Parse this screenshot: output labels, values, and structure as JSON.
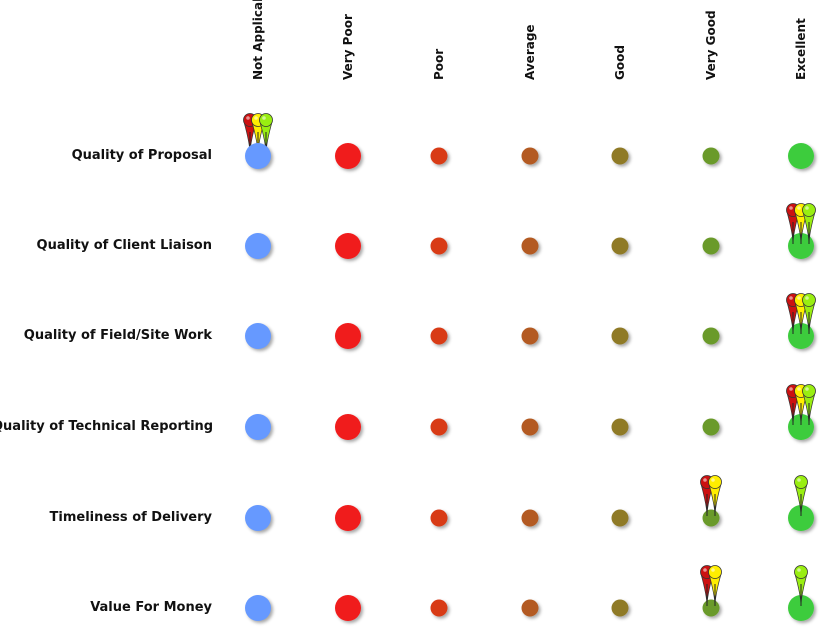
{
  "columns": [
    "Not Applicable",
    "Very Poor",
    "Poor",
    "Average",
    "Good",
    "Very Good",
    "Excellent"
  ],
  "scale_colors": [
    "#f01a1a",
    "#d83a18",
    "#b35a20",
    "#8f7a28",
    "#6a9a2a",
    "#3dcc3d"
  ],
  "na_color": "#6699ff",
  "pin_colors": {
    "red": "#cc1111",
    "yellow": "#ffee00",
    "green": "#99ee11"
  },
  "rows": [
    {
      "label": "Quality of Proposal",
      "pins": [
        {
          "position": "Not Applicable",
          "colors": [
            "red",
            "yellow",
            "green"
          ]
        }
      ]
    },
    {
      "label": "Quality of Client Liaison",
      "pins": [
        {
          "position": "Excellent",
          "colors": [
            "red",
            "yellow",
            "green"
          ]
        }
      ]
    },
    {
      "label": "Quality of Field/Site Work",
      "pins": [
        {
          "position": "Excellent",
          "colors": [
            "red",
            "yellow",
            "green"
          ]
        }
      ]
    },
    {
      "label": "Quality of Technical Reporting",
      "pins": [
        {
          "position": "Excellent",
          "colors": [
            "red",
            "yellow",
            "green"
          ]
        }
      ]
    },
    {
      "label": "Timeliness of Delivery",
      "pins": [
        {
          "position": "Very Good",
          "colors": [
            "red",
            "yellow"
          ]
        },
        {
          "position": "Excellent",
          "colors": [
            "green"
          ]
        }
      ]
    },
    {
      "label": "Value For Money",
      "pins": [
        {
          "position": "Very Good",
          "colors": [
            "red",
            "yellow"
          ]
        },
        {
          "position": "Excellent",
          "colors": [
            "green"
          ]
        }
      ]
    }
  ]
}
